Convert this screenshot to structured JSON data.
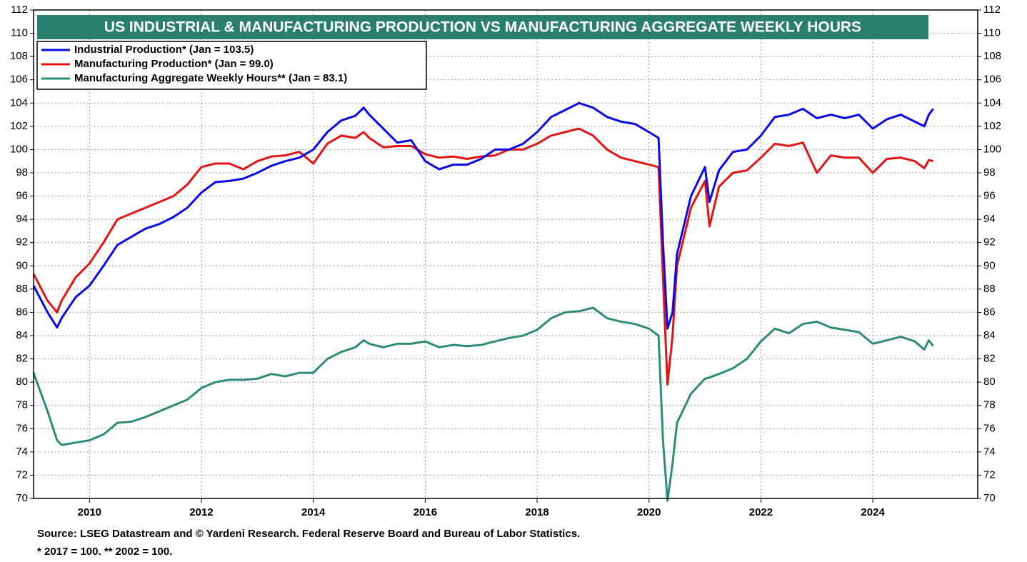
{
  "chart_data": {
    "type": "line",
    "title": "US INDUSTRIAL & MANUFACTURING PRODUCTION VS MANUFACTURING AGGREGATE WEEKLY HOURS",
    "notes": [
      "Source: LSEG Datastream and © Yardeni Research. Federal Reserve Board and Bureau of Labor Statistics.",
      "* 2017 = 100.   ** 2002 = 100."
    ],
    "x": [
      2009,
      2009.25,
      2009.42,
      2009.5,
      2009.75,
      2010,
      2010.25,
      2010.5,
      2010.75,
      2011,
      2011.25,
      2011.5,
      2011.75,
      2012,
      2012.25,
      2012.5,
      2012.75,
      2013,
      2013.25,
      2013.5,
      2013.75,
      2014,
      2014.25,
      2014.5,
      2014.75,
      2014.9,
      2015,
      2015.25,
      2015.5,
      2015.75,
      2016,
      2016.25,
      2016.5,
      2016.75,
      2017,
      2017.25,
      2017.5,
      2017.75,
      2018,
      2018.25,
      2018.5,
      2018.75,
      2019,
      2019.25,
      2019.5,
      2019.75,
      2020,
      2020.17,
      2020.25,
      2020.33,
      2020.42,
      2020.5,
      2020.75,
      2021,
      2021.08,
      2021.25,
      2021.5,
      2021.75,
      2022,
      2022.25,
      2022.5,
      2022.75,
      2023,
      2023.25,
      2023.5,
      2023.75,
      2024,
      2024.25,
      2024.5,
      2024.75,
      2024.92,
      2025,
      2025.08
    ],
    "series": [
      {
        "name": "Industrial Production* (Jan = 103.5)",
        "color": "#0a0ae6",
        "values": [
          88.3,
          86.0,
          84.7,
          85.5,
          87.3,
          88.3,
          90.0,
          91.8,
          92.5,
          93.2,
          93.6,
          94.2,
          95.0,
          96.3,
          97.2,
          97.3,
          97.5,
          98.0,
          98.6,
          99.0,
          99.3,
          100.0,
          101.5,
          102.5,
          102.9,
          103.6,
          103.0,
          101.8,
          100.6,
          100.8,
          99.0,
          98.3,
          98.7,
          98.7,
          99.2,
          100.0,
          100.0,
          100.5,
          101.5,
          102.8,
          103.4,
          104.0,
          103.6,
          102.8,
          102.4,
          102.2,
          101.5,
          101.0,
          92.0,
          84.6,
          86.0,
          91.0,
          96.0,
          98.5,
          95.5,
          98.2,
          99.8,
          100.0,
          101.2,
          102.8,
          103.0,
          103.5,
          102.7,
          103.0,
          102.7,
          103.0,
          101.8,
          102.6,
          103.0,
          102.4,
          102.0,
          103.0,
          103.5
        ]
      },
      {
        "name": "Manufacturing Production* (Jan = 99.0)",
        "color": "#e41414",
        "values": [
          89.3,
          87.0,
          86.0,
          87.0,
          89.0,
          90.2,
          92.0,
          94.0,
          94.5,
          95.0,
          95.5,
          96.0,
          97.0,
          98.5,
          98.8,
          98.8,
          98.3,
          99.0,
          99.4,
          99.5,
          99.8,
          98.8,
          100.5,
          101.2,
          101.0,
          101.5,
          101.0,
          100.2,
          100.3,
          100.3,
          99.6,
          99.3,
          99.4,
          99.2,
          99.4,
          99.5,
          100.0,
          100.0,
          100.5,
          101.2,
          101.5,
          101.8,
          101.2,
          100.0,
          99.3,
          99.0,
          98.7,
          98.5,
          89.0,
          79.8,
          84.0,
          90.0,
          95.0,
          97.3,
          93.4,
          96.8,
          98.0,
          98.2,
          99.3,
          100.5,
          100.3,
          100.6,
          98.0,
          99.5,
          99.3,
          99.3,
          98.0,
          99.2,
          99.3,
          99.0,
          98.4,
          99.1,
          99.0
        ]
      },
      {
        "name": "Manufacturing Aggregate Weekly Hours**  (Jan = 83.1)",
        "color": "#2e8b78",
        "values": [
          80.8,
          77.5,
          75.0,
          74.6,
          74.8,
          75.0,
          75.5,
          76.5,
          76.6,
          77.0,
          77.5,
          78.0,
          78.5,
          79.5,
          80.0,
          80.2,
          80.2,
          80.3,
          80.7,
          80.5,
          80.8,
          80.8,
          82.0,
          82.6,
          83.0,
          83.6,
          83.3,
          83.0,
          83.3,
          83.3,
          83.5,
          83.0,
          83.2,
          83.1,
          83.2,
          83.5,
          83.8,
          84.0,
          84.5,
          85.5,
          86.0,
          86.1,
          86.4,
          85.5,
          85.2,
          85.0,
          84.6,
          84.0,
          75.0,
          69.8,
          73.0,
          76.5,
          79.0,
          80.3,
          80.4,
          80.7,
          81.2,
          82.0,
          83.5,
          84.6,
          84.2,
          85.0,
          85.2,
          84.7,
          84.5,
          84.3,
          83.3,
          83.6,
          83.9,
          83.5,
          82.8,
          83.6,
          83.1
        ]
      }
    ],
    "xlim": [
      2009,
      2025.875
    ],
    "xticks": [
      2010,
      2012,
      2014,
      2016,
      2018,
      2020,
      2022,
      2024
    ],
    "ylim": [
      70,
      112
    ],
    "yticks": [
      70,
      72,
      74,
      76,
      78,
      80,
      82,
      84,
      86,
      88,
      90,
      92,
      94,
      96,
      98,
      100,
      102,
      104,
      106,
      108,
      110,
      112
    ],
    "grid": true,
    "legend": "upper left",
    "title_color": "#2a7f6c"
  }
}
